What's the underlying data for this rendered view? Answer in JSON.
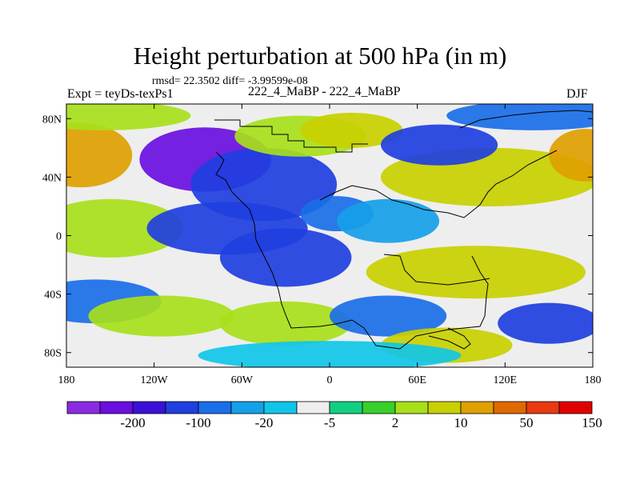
{
  "chart_data": {
    "type": "heatmap",
    "title": "Height perturbation at 500 hPa (in m)",
    "stats": "rmsd= 22.3502 diff= -3.99599e-08",
    "left_label": "Expt = teyDs-texPs1",
    "center_label": "222_4_MaBP - 222_4_MaBP",
    "right_label": "DJF",
    "x_range": [
      -180,
      180
    ],
    "y_range": [
      -90,
      90
    ],
    "x_ticks": [
      {
        "value": -180,
        "label": "180"
      },
      {
        "value": -120,
        "label": "120W"
      },
      {
        "value": -60,
        "label": "60W"
      },
      {
        "value": 0,
        "label": "0"
      },
      {
        "value": 60,
        "label": "60E"
      },
      {
        "value": 120,
        "label": "120E"
      },
      {
        "value": 180,
        "label": "180"
      }
    ],
    "y_ticks": [
      {
        "value": 80,
        "label": "80N"
      },
      {
        "value": 40,
        "label": "40N"
      },
      {
        "value": 0,
        "label": "0"
      },
      {
        "value": -40,
        "label": "40S"
      },
      {
        "value": -80,
        "label": "80S"
      }
    ],
    "colorbar": {
      "colors": [
        "#8a2be2",
        "#6a0fe0",
        "#3a10d8",
        "#1f3fe0",
        "#1a6ee8",
        "#15a0e8",
        "#10c6e8",
        "#eeeeee",
        "#10d080",
        "#38d02a",
        "#a8e01a",
        "#c8d000",
        "#e0a000",
        "#e06800",
        "#e83a10",
        "#e00000"
      ],
      "labels": [
        {
          "after_index": 1,
          "label": "-200"
        },
        {
          "after_index": 3,
          "label": "-100"
        },
        {
          "after_index": 5,
          "label": "-20"
        },
        {
          "after_index": 7,
          "label": "-5"
        },
        {
          "after_index": 9,
          "label": "2"
        },
        {
          "after_index": 11,
          "label": "10"
        },
        {
          "after_index": 13,
          "label": "50"
        },
        {
          "after_index": 15,
          "label": "150"
        }
      ]
    },
    "field_blobs": [
      {
        "lon": -170,
        "lat": 55,
        "rlon": 35,
        "rlat": 22,
        "value": 60
      },
      {
        "lon": -155,
        "lat": 82,
        "rlon": 60,
        "rlat": 10,
        "value": 15
      },
      {
        "lon": -85,
        "lat": 52,
        "rlon": 45,
        "rlat": 22,
        "value": -110
      },
      {
        "lon": -45,
        "lat": 35,
        "rlon": 50,
        "rlat": 25,
        "value": -40
      },
      {
        "lon": -20,
        "lat": 68,
        "rlon": 45,
        "rlat": 14,
        "value": 12
      },
      {
        "lon": 15,
        "lat": 72,
        "rlon": 35,
        "rlat": 12,
        "value": 20
      },
      {
        "lon": 110,
        "lat": 40,
        "rlon": 75,
        "rlat": 20,
        "value": 45
      },
      {
        "lon": 175,
        "lat": 55,
        "rlon": 25,
        "rlat": 18,
        "value": 60
      },
      {
        "lon": 75,
        "lat": 62,
        "rlon": 40,
        "rlat": 14,
        "value": -30
      },
      {
        "lon": 140,
        "lat": 82,
        "rlon": 60,
        "rlat": 10,
        "value": -20
      },
      {
        "lon": -150,
        "lat": 5,
        "rlon": 50,
        "rlat": 20,
        "value": 14
      },
      {
        "lon": -70,
        "lat": 5,
        "rlon": 55,
        "rlat": 18,
        "value": -35
      },
      {
        "lon": -30,
        "lat": -15,
        "rlon": 45,
        "rlat": 20,
        "value": -50
      },
      {
        "lon": 5,
        "lat": 15,
        "rlon": 25,
        "rlat": 12,
        "value": -15
      },
      {
        "lon": 100,
        "lat": -25,
        "rlon": 75,
        "rlat": 18,
        "value": 25
      },
      {
        "lon": 40,
        "lat": 10,
        "rlon": 35,
        "rlat": 15,
        "value": -10
      },
      {
        "lon": -160,
        "lat": -45,
        "rlon": 45,
        "rlat": 15,
        "value": -12
      },
      {
        "lon": -115,
        "lat": -55,
        "rlon": 50,
        "rlat": 14,
        "value": 14
      },
      {
        "lon": -30,
        "lat": -60,
        "rlon": 45,
        "rlat": 15,
        "value": 18
      },
      {
        "lon": 40,
        "lat": -55,
        "rlon": 40,
        "rlat": 14,
        "value": -12
      },
      {
        "lon": 80,
        "lat": -75,
        "rlon": 45,
        "rlat": 12,
        "value": 25
      },
      {
        "lon": 150,
        "lat": -60,
        "rlon": 35,
        "rlat": 14,
        "value": -25
      },
      {
        "lon": 0,
        "lat": -82,
        "rlon": 90,
        "rlat": 10,
        "value": -4
      }
    ]
  }
}
